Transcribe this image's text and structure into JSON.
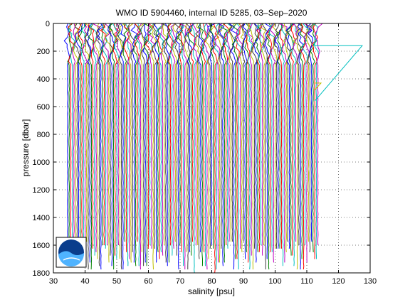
{
  "chart_data": {
    "type": "line",
    "title": "WMO ID 5904460, internal ID 5285, 03–Sep–2020",
    "xlabel": "salinity [psu]",
    "ylabel": "pressure [dbar]",
    "xlim": [
      30,
      130
    ],
    "ylim": [
      0,
      1800
    ],
    "y_reversed": true,
    "grid": true,
    "grid_style": "dotted",
    "xticks": [
      "30",
      "40",
      "50",
      "60",
      "70",
      "80",
      "90",
      "100",
      "110",
      "120",
      "130"
    ],
    "yticks": [
      "0",
      "200",
      "400",
      "600",
      "800",
      "1000",
      "1200",
      "1400",
      "1600",
      "1800"
    ],
    "series_colors": [
      "#0000ff",
      "#008000",
      "#ff0000",
      "#00bfbf",
      "#bf00bf",
      "#bfbf00",
      "#404040"
    ],
    "profile_offsets": {
      "first_profile_salinity": 34.5,
      "last_profile_salinity": 113.5,
      "offset_step_psu": 0.5
    },
    "deep_profile_bottom_dbar": 1650,
    "outlier_series": [
      {
        "color": "#00bfbf",
        "points": [
          [
            112.5,
            100
          ],
          [
            112.5,
            160
          ],
          [
            127.5,
            160
          ],
          [
            112.5,
            560
          ]
        ]
      },
      {
        "color": "#bfbf00",
        "points": [
          [
            112.5,
            430
          ],
          [
            114.5,
            430
          ],
          [
            112.5,
            480
          ]
        ]
      }
    ],
    "logo": {
      "text": "NOAA",
      "placement": "bottom-left",
      "colors": [
        "#0a3d8c",
        "#1e88e5"
      ]
    }
  }
}
